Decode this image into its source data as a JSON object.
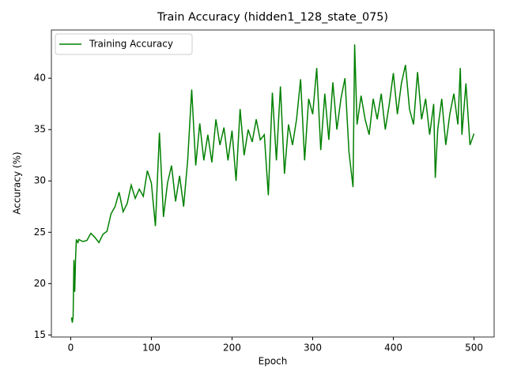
{
  "chart_data": {
    "type": "line",
    "title": "Train Accuracy (hidden1_128_state_075)",
    "x_label": "Epoch",
    "y_label": "Accuracy (%)",
    "x": [
      1,
      2,
      3,
      4,
      5,
      6,
      7,
      8,
      9,
      10,
      15,
      20,
      25,
      30,
      35,
      40,
      45,
      50,
      55,
      60,
      65,
      70,
      75,
      80,
      85,
      90,
      95,
      100,
      105,
      110,
      115,
      120,
      125,
      130,
      135,
      140,
      145,
      150,
      155,
      160,
      165,
      170,
      175,
      180,
      185,
      190,
      195,
      200,
      205,
      210,
      215,
      220,
      225,
      230,
      235,
      240,
      245,
      250,
      255,
      260,
      265,
      270,
      275,
      280,
      285,
      290,
      295,
      300,
      305,
      310,
      315,
      320,
      325,
      330,
      335,
      340,
      345,
      350,
      352,
      355,
      360,
      365,
      370,
      375,
      380,
      385,
      390,
      395,
      400,
      405,
      410,
      415,
      420,
      425,
      430,
      435,
      440,
      445,
      450,
      452,
      455,
      460,
      465,
      470,
      475,
      480,
      483,
      485,
      490,
      495,
      500
    ],
    "series": [
      {
        "name": "Training Accuracy",
        "color": "#008000",
        "values": [
          16.7,
          16.2,
          16.8,
          22.3,
          19.2,
          22.4,
          24.3,
          24.1,
          24.0,
          24.3,
          24.1,
          24.2,
          24.9,
          24.5,
          24.0,
          24.8,
          25.1,
          26.8,
          27.5,
          28.9,
          27.0,
          27.8,
          29.6,
          28.3,
          29.2,
          28.5,
          31.0,
          29.8,
          25.6,
          34.7,
          26.5,
          29.8,
          31.5,
          28.0,
          30.5,
          27.5,
          32.0,
          38.9,
          31.5,
          35.6,
          32.0,
          34.5,
          31.8,
          36.0,
          33.5,
          35.2,
          32.0,
          34.9,
          30.0,
          37.0,
          32.5,
          35.0,
          33.8,
          36.0,
          34.0,
          34.5,
          28.6,
          38.6,
          32.0,
          39.2,
          30.7,
          35.5,
          33.5,
          36.0,
          39.9,
          32.0,
          38.0,
          36.5,
          41.0,
          33.0,
          38.5,
          34.0,
          39.6,
          35.0,
          38.0,
          40.0,
          32.8,
          29.4,
          43.3,
          35.5,
          38.3,
          36.0,
          34.5,
          38.0,
          36.0,
          38.5,
          35.0,
          37.5,
          40.5,
          36.5,
          39.5,
          41.3,
          37.0,
          35.5,
          40.6,
          36.0,
          38.0,
          34.5,
          37.5,
          30.3,
          35.0,
          38.0,
          33.5,
          36.5,
          38.5,
          35.5,
          41.0,
          34.5,
          39.5,
          33.5,
          34.6
        ]
      }
    ],
    "xlim": [
      -23.95,
      524.95
    ],
    "ylim": [
      14.8,
      44.7
    ],
    "xticks": [
      0,
      100,
      200,
      300,
      400,
      500
    ],
    "yticks": [
      15,
      20,
      25,
      30,
      35,
      40
    ],
    "legend": "upper left"
  }
}
